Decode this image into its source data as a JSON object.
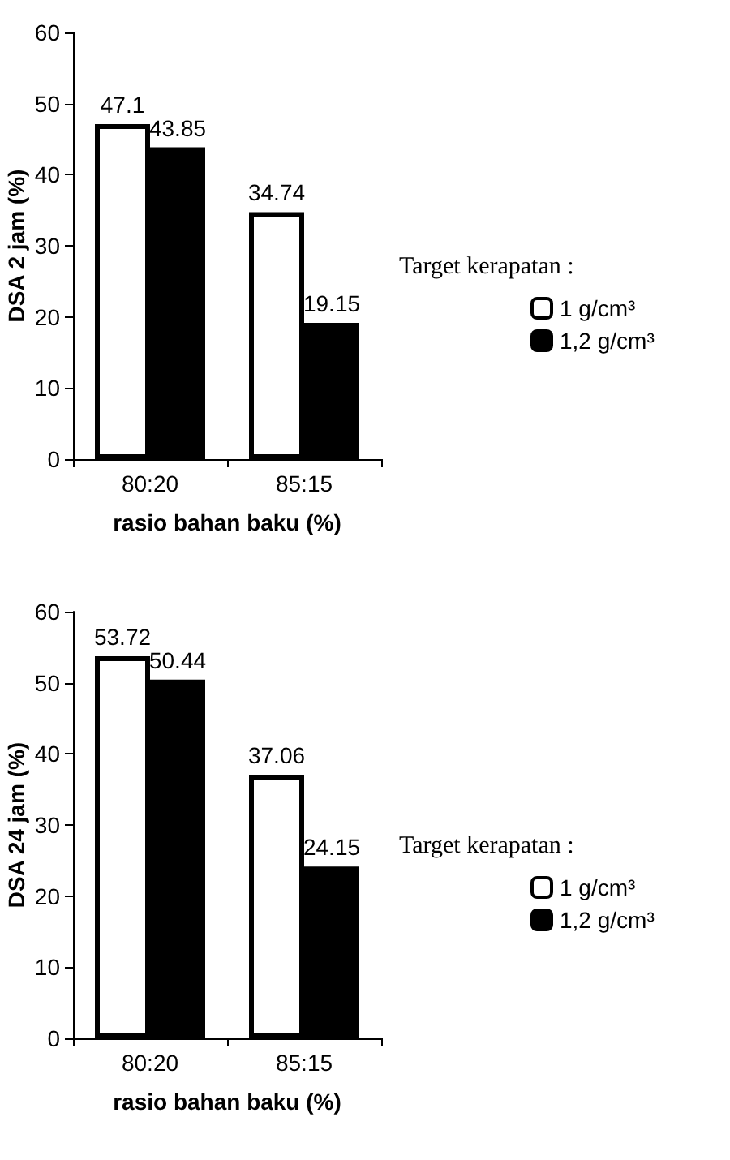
{
  "chart_data": [
    {
      "type": "bar",
      "ylabel": "DSA 2 jam (%)",
      "xlabel": "rasio bahan baku (%)",
      "categories": [
        "80:20",
        "85:15"
      ],
      "ylim": [
        0,
        60
      ],
      "yticks": [
        0,
        10,
        20,
        30,
        40,
        50,
        60
      ],
      "legend_title": "Target kerapatan :",
      "legend": "right",
      "grid": false,
      "data_labels": true,
      "series": [
        {
          "name": "1 g/cm³",
          "color": "#ffffff",
          "values": [
            47.1,
            34.74
          ]
        },
        {
          "name": "1,2 g/cm³",
          "color": "#000000",
          "values": [
            43.85,
            19.15
          ]
        }
      ]
    },
    {
      "type": "bar",
      "ylabel": "DSA 24 jam (%)",
      "xlabel": "rasio bahan baku (%)",
      "categories": [
        "80:20",
        "85:15"
      ],
      "ylim": [
        0,
        60
      ],
      "yticks": [
        0,
        10,
        20,
        30,
        40,
        50,
        60
      ],
      "legend_title": "Target kerapatan :",
      "legend": "right",
      "grid": false,
      "data_labels": true,
      "series": [
        {
          "name": "1 g/cm³",
          "color": "#ffffff",
          "values": [
            53.72,
            37.06
          ]
        },
        {
          "name": "1,2 g/cm³",
          "color": "#000000",
          "values": [
            50.44,
            24.15
          ]
        }
      ]
    }
  ]
}
